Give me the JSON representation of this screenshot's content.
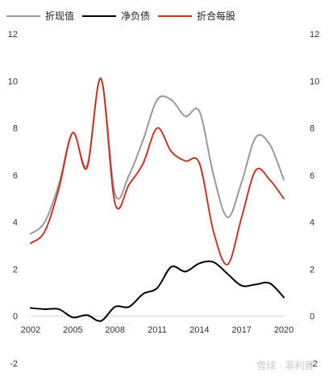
{
  "chart_data": {
    "type": "line",
    "x": [
      2002,
      2003,
      2004,
      2005,
      2006,
      2007,
      2008,
      2009,
      2010,
      2011,
      2012,
      2013,
      2014,
      2015,
      2016,
      2017,
      2018,
      2019,
      2020
    ],
    "x_ticks": [
      "2002",
      "2005",
      "2008",
      "2011",
      "2014",
      "2017",
      "2020"
    ],
    "y_ticks_left": [
      "12",
      "10",
      "8",
      "6",
      "4",
      "2",
      "0",
      "-2"
    ],
    "y_ticks_right": [
      "12",
      "10",
      "8",
      "6",
      "4",
      "2",
      "0",
      "-2"
    ],
    "ylim": [
      -2,
      12
    ],
    "series": [
      {
        "name": "折现值",
        "color": "#999999",
        "values": [
          3.5,
          4.0,
          5.6,
          7.8,
          6.4,
          10.1,
          5.2,
          6.0,
          7.5,
          9.2,
          9.2,
          8.5,
          8.7,
          6.0,
          4.2,
          5.7,
          7.6,
          7.3,
          5.8
        ]
      },
      {
        "name": "净负债",
        "color": "#000000",
        "values": [
          0.35,
          0.3,
          0.3,
          -0.05,
          0.05,
          -0.2,
          0.4,
          0.4,
          0.95,
          1.2,
          2.1,
          1.9,
          2.25,
          2.3,
          1.8,
          1.3,
          1.35,
          1.4,
          0.8
        ]
      },
      {
        "name": "折合每股",
        "color": "#c0392b",
        "values": [
          3.1,
          3.6,
          5.4,
          7.8,
          6.3,
          10.1,
          4.8,
          5.6,
          6.5,
          8.0,
          7.0,
          6.6,
          6.5,
          3.6,
          2.2,
          4.2,
          6.2,
          5.8,
          5.0
        ]
      }
    ],
    "legend": {
      "position": "top-left",
      "items": [
        "折现值",
        "净负债",
        "折合每股"
      ]
    },
    "grid": false,
    "watermark": "雪球 · 菲利普"
  }
}
